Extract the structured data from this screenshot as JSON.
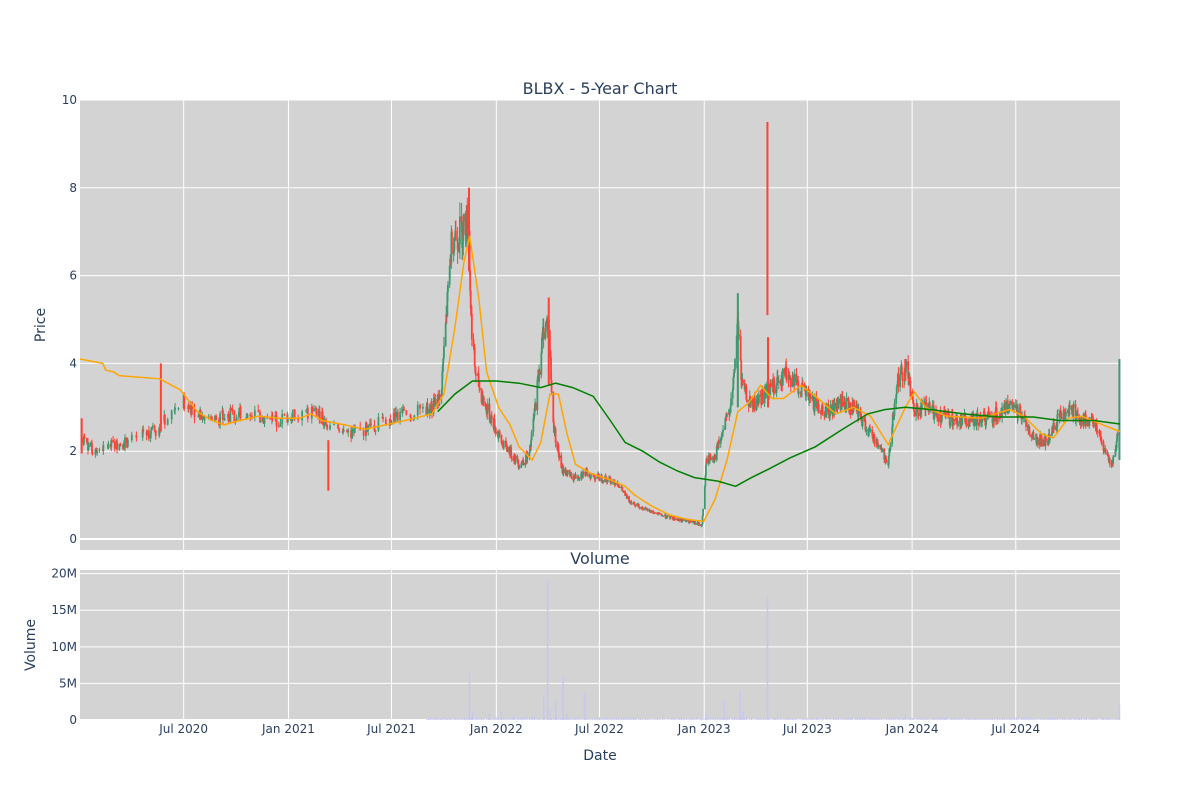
{
  "chart_data": [
    {
      "type": "candlestick",
      "title": "BLBX - 5-Year Chart",
      "ylabel": "Price",
      "ylim": [
        -0.25,
        10
      ],
      "y_ticks": [
        "0",
        "2",
        "4",
        "6",
        "8",
        "10"
      ],
      "grid": true,
      "background": "#d3d3d3",
      "colors": {
        "up": "#3d9970",
        "down": "#ff4136",
        "ma_short": "#ffa500",
        "ma_long": "#008000"
      },
      "price_path": [
        [
          "2020-01-03",
          2.3
        ],
        [
          "2020-01-25",
          2.0
        ],
        [
          "2020-02-15",
          2.1
        ],
        [
          "2020-03-20",
          2.2
        ],
        [
          "2020-05-15",
          2.5
        ],
        [
          "2020-06-05",
          2.8
        ],
        [
          "2020-06-25",
          3.2
        ],
        [
          "2020-07-15",
          3.0
        ],
        [
          "2020-08-15",
          2.7
        ],
        [
          "2020-09-15",
          2.8
        ],
        [
          "2020-10-15",
          2.9
        ],
        [
          "2020-11-10",
          2.8
        ],
        [
          "2020-12-10",
          2.7
        ],
        [
          "2021-01-15",
          2.8
        ],
        [
          "2021-02-15",
          2.9
        ],
        [
          "2021-03-15",
          2.6
        ],
        [
          "2021-04-15",
          2.4
        ],
        [
          "2021-05-15",
          2.5
        ],
        [
          "2021-06-15",
          2.7
        ],
        [
          "2021-07-15",
          2.8
        ],
        [
          "2021-08-15",
          2.9
        ],
        [
          "2021-09-10",
          3.0
        ],
        [
          "2021-09-25",
          3.2
        ],
        [
          "2021-10-05",
          5.0
        ],
        [
          "2021-10-15",
          6.9
        ],
        [
          "2021-11-01",
          7.0
        ],
        [
          "2021-11-12",
          7.3
        ],
        [
          "2021-11-18",
          5.0
        ],
        [
          "2021-11-25",
          3.8
        ],
        [
          "2021-12-10",
          3.1
        ],
        [
          "2021-12-25",
          2.7
        ],
        [
          "2022-01-10",
          2.2
        ],
        [
          "2022-01-25",
          2.0
        ],
        [
          "2022-02-10",
          1.7
        ],
        [
          "2022-02-28",
          1.9
        ],
        [
          "2022-03-10",
          3.0
        ],
        [
          "2022-03-25",
          4.8
        ],
        [
          "2022-04-03",
          5.0
        ],
        [
          "2022-04-10",
          2.7
        ],
        [
          "2022-04-25",
          1.6
        ],
        [
          "2022-05-15",
          1.4
        ],
        [
          "2022-06-05",
          1.5
        ],
        [
          "2022-07-01",
          1.4
        ],
        [
          "2022-08-01",
          1.3
        ],
        [
          "2022-08-20",
          0.9
        ],
        [
          "2022-09-15",
          0.7
        ],
        [
          "2022-10-15",
          0.55
        ],
        [
          "2022-11-15",
          0.45
        ],
        [
          "2022-12-10",
          0.38
        ],
        [
          "2022-12-28",
          0.32
        ],
        [
          "2023-01-05",
          1.8
        ],
        [
          "2023-01-20",
          1.9
        ],
        [
          "2023-02-05",
          2.5
        ],
        [
          "2023-02-20",
          3.3
        ],
        [
          "2023-03-01",
          5.0
        ],
        [
          "2023-03-08",
          3.5
        ],
        [
          "2023-03-25",
          3.0
        ],
        [
          "2023-04-15",
          3.3
        ],
        [
          "2023-05-05",
          3.5
        ],
        [
          "2023-05-25",
          3.8
        ],
        [
          "2023-06-15",
          3.5
        ],
        [
          "2023-07-10",
          3.1
        ],
        [
          "2023-08-05",
          2.9
        ],
        [
          "2023-09-01",
          3.1
        ],
        [
          "2023-09-25",
          2.9
        ],
        [
          "2023-10-15",
          2.5
        ],
        [
          "2023-11-01",
          2.2
        ],
        [
          "2023-11-20",
          1.7
        ],
        [
          "2023-12-05",
          3.6
        ],
        [
          "2023-12-22",
          3.9
        ],
        [
          "2024-01-05",
          2.9
        ],
        [
          "2024-01-25",
          3.0
        ],
        [
          "2024-02-20",
          2.8
        ],
        [
          "2024-03-20",
          2.7
        ],
        [
          "2024-04-20",
          2.7
        ],
        [
          "2024-05-20",
          2.8
        ],
        [
          "2024-06-15",
          3.0
        ],
        [
          "2024-07-10",
          2.9
        ],
        [
          "2024-08-01",
          2.3
        ],
        [
          "2024-08-25",
          2.2
        ],
        [
          "2024-09-15",
          2.8
        ],
        [
          "2024-10-05",
          3.0
        ],
        [
          "2024-10-25",
          2.7
        ],
        [
          "2024-11-20",
          2.6
        ],
        [
          "2024-12-05",
          2.0
        ],
        [
          "2024-12-16",
          1.7
        ],
        [
          "2024-12-20",
          1.8
        ],
        [
          "2024-12-30",
          2.6
        ]
      ],
      "wicks": [
        {
          "date": "2020-01-04",
          "low": 1.95,
          "high": 2.75,
          "dir": "down"
        },
        {
          "date": "2020-05-22",
          "low": 2.45,
          "high": 4.0,
          "dir": "down"
        },
        {
          "date": "2021-03-12",
          "low": 1.1,
          "high": 2.25,
          "dir": "down"
        },
        {
          "date": "2021-11-14",
          "low": 6.1,
          "high": 8.0,
          "dir": "down"
        },
        {
          "date": "2022-04-03",
          "low": 3.5,
          "high": 5.5,
          "dir": "down"
        },
        {
          "date": "2023-03-01",
          "low": 3.0,
          "high": 5.6,
          "dir": "up"
        },
        {
          "date": "2023-04-22",
          "low": 5.1,
          "high": 9.5,
          "dir": "down"
        },
        {
          "date": "2023-04-23",
          "low": 3.0,
          "high": 4.6,
          "dir": "down"
        },
        {
          "date": "2023-12-20",
          "low": 3.6,
          "high": 4.1,
          "dir": "down"
        },
        {
          "date": "2024-12-30",
          "low": 1.8,
          "high": 4.1,
          "dir": "up"
        }
      ],
      "series": [
        {
          "color": "#ffa500",
          "points": [
            [
              "2020-01-01",
              4.1
            ],
            [
              "2020-02-10",
              4.0
            ],
            [
              "2020-02-15",
              3.85
            ],
            [
              "2020-03-01",
              3.8
            ],
            [
              "2020-03-10",
              3.72
            ],
            [
              "2020-05-20",
              3.65
            ],
            [
              "2020-06-25",
              3.4
            ],
            [
              "2020-07-25",
              2.9
            ],
            [
              "2020-08-20",
              2.7
            ],
            [
              "2020-09-10",
              2.6
            ],
            [
              "2020-10-01",
              2.68
            ],
            [
              "2020-11-10",
              2.8
            ],
            [
              "2020-12-15",
              2.75
            ],
            [
              "2021-01-20",
              2.75
            ],
            [
              "2021-02-10",
              2.85
            ],
            [
              "2021-03-01",
              2.7
            ],
            [
              "2021-04-10",
              2.6
            ],
            [
              "2021-05-15",
              2.5
            ],
            [
              "2021-06-20",
              2.6
            ],
            [
              "2021-07-25",
              2.7
            ],
            [
              "2021-09-10",
              2.85
            ],
            [
              "2021-10-01",
              3.3
            ],
            [
              "2021-10-20",
              4.8
            ],
            [
              "2021-11-05",
              6.3
            ],
            [
              "2021-11-15",
              6.9
            ],
            [
              "2021-12-01",
              5.5
            ],
            [
              "2021-12-15",
              3.8
            ],
            [
              "2022-01-05",
              3.0
            ],
            [
              "2022-01-25",
              2.6
            ],
            [
              "2022-02-10",
              2.1
            ],
            [
              "2022-03-05",
              1.8
            ],
            [
              "2022-03-20",
              2.2
            ],
            [
              "2022-04-05",
              3.3
            ],
            [
              "2022-04-20",
              3.3
            ],
            [
              "2022-05-05",
              2.4
            ],
            [
              "2022-05-20",
              1.7
            ],
            [
              "2022-06-15",
              1.5
            ],
            [
              "2022-07-20",
              1.35
            ],
            [
              "2022-08-15",
              1.2
            ],
            [
              "2022-09-01",
              1.0
            ],
            [
              "2022-10-01",
              0.75
            ],
            [
              "2022-11-01",
              0.55
            ],
            [
              "2022-12-01",
              0.45
            ],
            [
              "2022-12-31",
              0.4
            ],
            [
              "2023-01-20",
              0.9
            ],
            [
              "2023-02-10",
              1.8
            ],
            [
              "2023-03-01",
              2.9
            ],
            [
              "2023-03-20",
              3.1
            ],
            [
              "2023-04-10",
              3.5
            ],
            [
              "2023-04-30",
              3.2
            ],
            [
              "2023-05-20",
              3.2
            ],
            [
              "2023-06-20",
              3.5
            ],
            [
              "2023-07-20",
              3.2
            ],
            [
              "2023-08-20",
              2.85
            ],
            [
              "2023-09-20",
              3.0
            ],
            [
              "2023-10-20",
              2.8
            ],
            [
              "2023-11-20",
              2.15
            ],
            [
              "2023-12-20",
              3.0
            ],
            [
              "2024-01-05",
              3.35
            ],
            [
              "2024-01-25",
              3.0
            ],
            [
              "2024-03-01",
              2.8
            ],
            [
              "2024-05-01",
              2.75
            ],
            [
              "2024-06-20",
              2.95
            ],
            [
              "2024-07-15",
              2.8
            ],
            [
              "2024-08-15",
              2.4
            ],
            [
              "2024-09-05",
              2.3
            ],
            [
              "2024-10-01",
              2.75
            ],
            [
              "2024-10-25",
              2.8
            ],
            [
              "2024-12-01",
              2.6
            ],
            [
              "2024-12-31",
              2.45
            ]
          ]
        },
        {
          "color": "#008000",
          "points": [
            [
              "2021-09-20",
              2.9
            ],
            [
              "2021-10-20",
              3.3
            ],
            [
              "2021-11-20",
              3.6
            ],
            [
              "2022-01-01",
              3.6
            ],
            [
              "2022-02-10",
              3.55
            ],
            [
              "2022-03-20",
              3.45
            ],
            [
              "2022-04-15",
              3.55
            ],
            [
              "2022-05-15",
              3.45
            ],
            [
              "2022-06-20",
              3.25
            ],
            [
              "2022-07-20",
              2.7
            ],
            [
              "2022-08-15",
              2.2
            ],
            [
              "2022-09-15",
              2.0
            ],
            [
              "2022-10-15",
              1.75
            ],
            [
              "2022-11-15",
              1.55
            ],
            [
              "2022-12-15",
              1.4
            ],
            [
              "2023-01-25",
              1.32
            ],
            [
              "2023-02-25",
              1.2
            ],
            [
              "2023-03-25",
              1.4
            ],
            [
              "2023-04-25",
              1.6
            ],
            [
              "2023-06-01",
              1.85
            ],
            [
              "2023-07-15",
              2.1
            ],
            [
              "2023-09-01",
              2.5
            ],
            [
              "2023-10-15",
              2.85
            ],
            [
              "2023-11-15",
              2.95
            ],
            [
              "2023-12-20",
              3.0
            ],
            [
              "2024-02-01",
              2.95
            ],
            [
              "2024-04-01",
              2.85
            ],
            [
              "2024-06-01",
              2.78
            ],
            [
              "2024-08-01",
              2.78
            ],
            [
              "2024-09-15",
              2.7
            ],
            [
              "2024-11-15",
              2.7
            ],
            [
              "2024-12-31",
              2.62
            ]
          ]
        }
      ]
    },
    {
      "type": "bar",
      "title": "Volume",
      "xlabel": "Date",
      "ylabel": "Volume",
      "ylim": [
        0,
        20500000
      ],
      "y_ticks": [
        "0",
        "5M",
        "10M",
        "15M",
        "20M"
      ],
      "x_ticks": [
        "Jul 2020",
        "Jan 2021",
        "Jul 2021",
        "Jan 2022",
        "Jul 2022",
        "Jan 2023",
        "Jul 2023",
        "Jan 2024",
        "Jul 2024"
      ],
      "x_range": [
        "2020-01-01",
        "2024-12-31"
      ],
      "bar_color": "#c8c8ee",
      "values": [
        [
          "2021-11-15",
          6400000
        ],
        [
          "2021-11-20",
          1200000
        ],
        [
          "2021-12-20",
          900000
        ],
        [
          "2022-01-10",
          1300000
        ],
        [
          "2022-02-01",
          700000
        ],
        [
          "2022-03-25",
          3500000
        ],
        [
          "2022-04-01",
          19000000
        ],
        [
          "2022-04-05",
          1400000
        ],
        [
          "2022-04-15",
          2800000
        ],
        [
          "2022-04-28",
          5800000
        ],
        [
          "2022-05-05",
          900000
        ],
        [
          "2022-06-05",
          3700000
        ],
        [
          "2023-01-05",
          800000
        ],
        [
          "2023-02-05",
          2700000
        ],
        [
          "2023-03-05",
          4000000
        ],
        [
          "2023-03-10",
          1200000
        ],
        [
          "2023-04-22",
          17000000
        ],
        [
          "2023-12-20",
          800000
        ],
        [
          "2024-12-30",
          2100000
        ]
      ]
    }
  ]
}
